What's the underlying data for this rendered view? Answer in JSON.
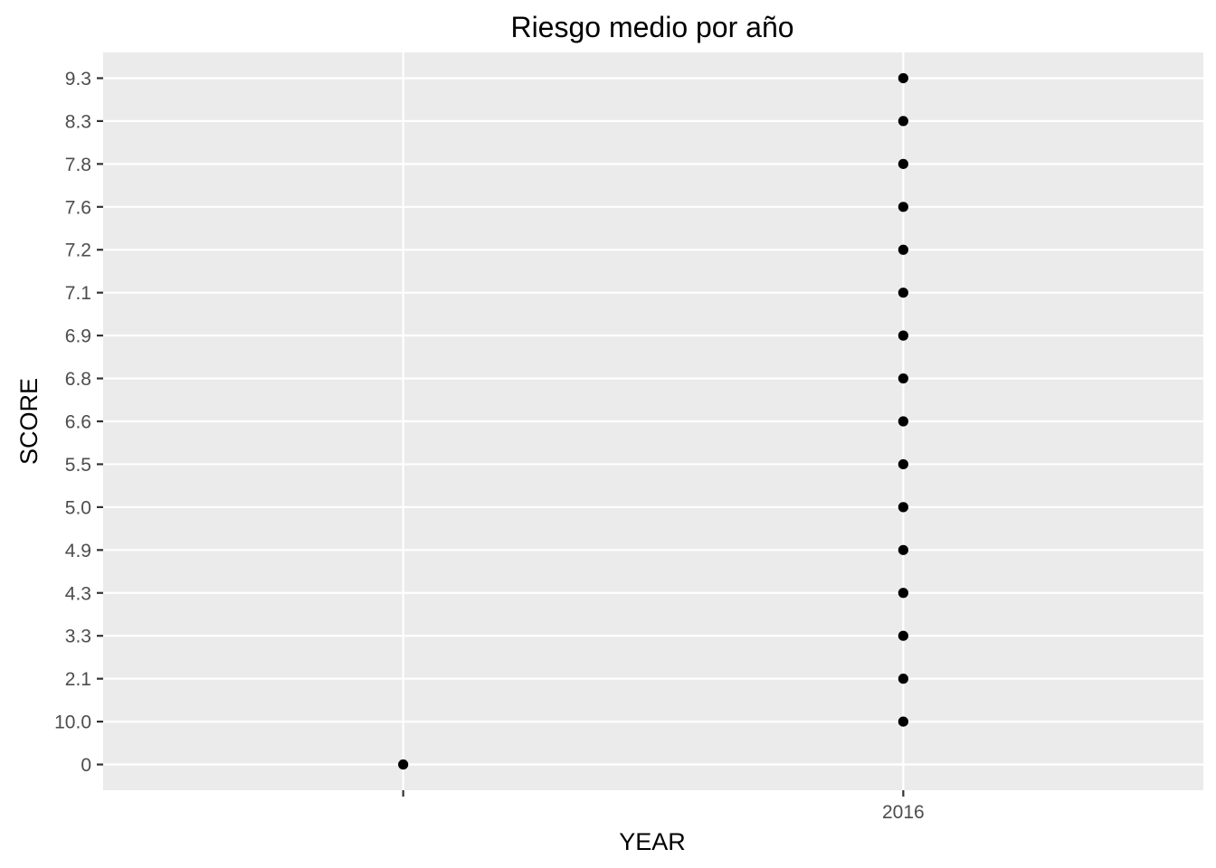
{
  "chart_data": {
    "type": "scatter",
    "title": "Riesgo medio por año",
    "xlabel": "YEAR",
    "ylabel": "SCORE",
    "x_axis": {
      "scale": "categorical",
      "categories": [
        "",
        "2016"
      ]
    },
    "y_axis": {
      "scale": "categorical",
      "categories": [
        "0",
        "10.0",
        "2.1",
        "3.3",
        "4.3",
        "4.9",
        "5.0",
        "5.5",
        "6.6",
        "6.8",
        "6.9",
        "7.1",
        "7.2",
        "7.6",
        "7.8",
        "8.3",
        "9.3"
      ]
    },
    "points": [
      {
        "x": "",
        "y": "0"
      },
      {
        "x": "2016",
        "y": "10.0"
      },
      {
        "x": "2016",
        "y": "2.1"
      },
      {
        "x": "2016",
        "y": "3.3"
      },
      {
        "x": "2016",
        "y": "4.3"
      },
      {
        "x": "2016",
        "y": "4.9"
      },
      {
        "x": "2016",
        "y": "5.0"
      },
      {
        "x": "2016",
        "y": "5.5"
      },
      {
        "x": "2016",
        "y": "6.6"
      },
      {
        "x": "2016",
        "y": "6.8"
      },
      {
        "x": "2016",
        "y": "6.9"
      },
      {
        "x": "2016",
        "y": "7.1"
      },
      {
        "x": "2016",
        "y": "7.2"
      },
      {
        "x": "2016",
        "y": "7.6"
      },
      {
        "x": "2016",
        "y": "7.8"
      },
      {
        "x": "2016",
        "y": "8.3"
      },
      {
        "x": "2016",
        "y": "9.3"
      }
    ],
    "grid": true,
    "legend": "none",
    "colors": {
      "panel_background": "#ebebeb",
      "grid_line": "#ffffff",
      "point": "#000000",
      "tick_label": "#4d4d4d",
      "tick_mark": "#333333"
    }
  }
}
